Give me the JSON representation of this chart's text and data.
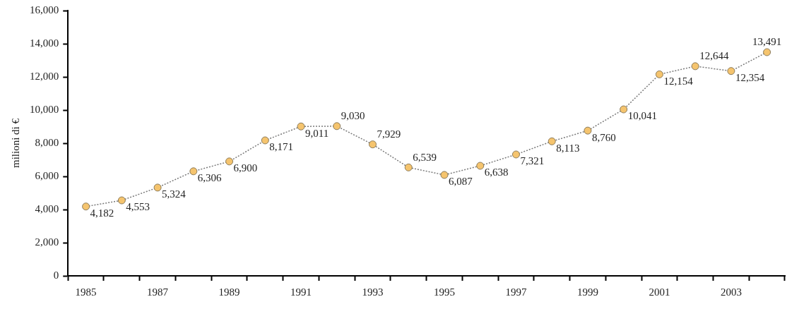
{
  "chart_data": {
    "type": "line",
    "ylabel": "milioni di €",
    "categories": [
      "1985",
      null,
      "1987",
      null,
      "1989",
      null,
      "1991",
      null,
      "1993",
      null,
      "1995",
      null,
      "1997",
      null,
      "1999",
      null,
      "2001",
      null,
      "2003",
      null
    ],
    "series": [
      {
        "color": "#f5c46e",
        "values": [
          4182,
          4553,
          5324,
          6306,
          6900,
          8171,
          9011,
          9030,
          7929,
          6539,
          6087,
          6638,
          7321,
          8113,
          8760,
          10041,
          12154,
          12644,
          12354,
          13491
        ],
        "value_labels": [
          "4,182",
          "4,553",
          "5,324",
          "6,306",
          "6,900",
          "8,171",
          "9,011",
          "9,030",
          "7,929",
          "6,539",
          "6,087",
          "6,638",
          "7,321",
          "8,113",
          "8,760",
          "10,041",
          "12,154",
          "12,644",
          "12,354",
          "13,491"
        ]
      }
    ],
    "ylim": [
      0,
      16000
    ],
    "yticks": [
      {
        "value": 0,
        "label": "0"
      },
      {
        "value": 2000,
        "label": "2,000"
      },
      {
        "value": 4000,
        "label": "4,000"
      },
      {
        "value": 6000,
        "label": "6,000"
      },
      {
        "value": 8000,
        "label": "8,000"
      },
      {
        "value": 10000,
        "label": "10,000"
      },
      {
        "value": 12000,
        "label": "12,000"
      },
      {
        "value": 14000,
        "label": "14,000"
      },
      {
        "value": 16000,
        "label": "16,000"
      }
    ],
    "grid": false,
    "legend": false,
    "marker": "circle",
    "line_style": "dotted"
  }
}
